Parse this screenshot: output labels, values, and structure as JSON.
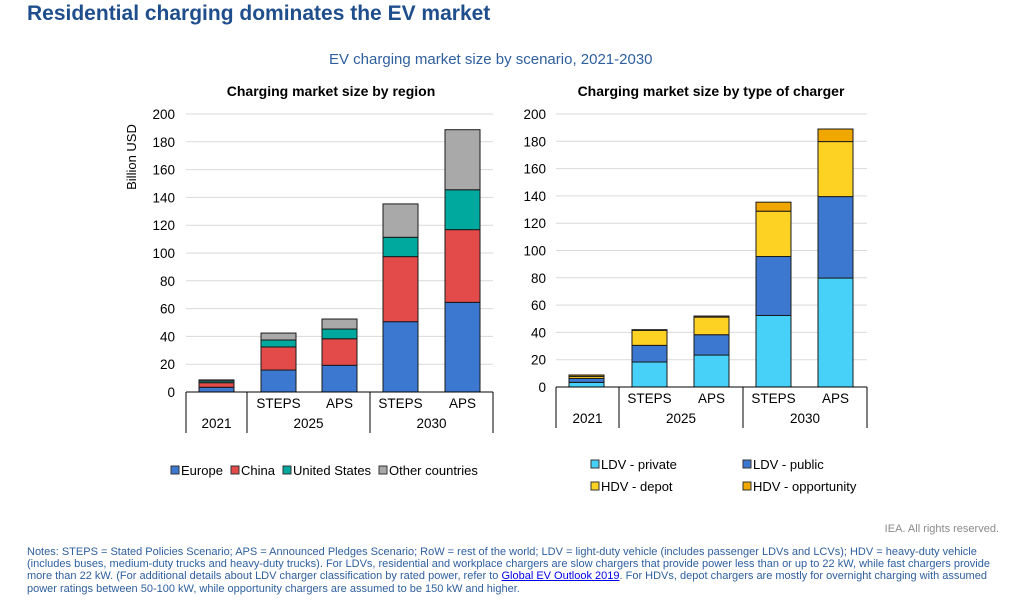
{
  "header": {
    "title": "Residential charging dominates the EV market",
    "subtitle": "EV charging market size by scenario, 2021-2030"
  },
  "chart_data": [
    {
      "type": "bar",
      "stacked": true,
      "title": "Charging market size by region",
      "ylabel": "Billion USD",
      "xlabel": "",
      "ylim": [
        0,
        200
      ],
      "yticks": [
        0,
        20,
        40,
        60,
        80,
        100,
        120,
        140,
        160,
        180,
        200
      ],
      "grid": true,
      "categories": [
        {
          "scenario": "",
          "year": "2021"
        },
        {
          "scenario": "STEPS",
          "year": "2025"
        },
        {
          "scenario": "APS",
          "year": "2025"
        },
        {
          "scenario": "STEPS",
          "year": "2030"
        },
        {
          "scenario": "APS",
          "year": "2030"
        }
      ],
      "year_groups": [
        "2021",
        "2025",
        "2030"
      ],
      "series": [
        {
          "name": "Europe",
          "color": "#3c78d0",
          "values": [
            3.4,
            15.8,
            19.2,
            50.6,
            64.5
          ]
        },
        {
          "name": "China",
          "color": "#e24b4a",
          "values": [
            3.3,
            16.6,
            19.1,
            46.8,
            52.3
          ]
        },
        {
          "name": "United States",
          "color": "#00a99d",
          "values": [
            1.2,
            5.0,
            7.0,
            13.9,
            28.7
          ]
        },
        {
          "name": "Other countries",
          "color": "#a9a9a9",
          "values": [
            0.8,
            5.0,
            7.2,
            24.0,
            43.2
          ]
        }
      ],
      "legend": "bottom"
    },
    {
      "type": "bar",
      "stacked": true,
      "title": "Charging market size by type of charger",
      "ylabel": "",
      "xlabel": "",
      "ylim": [
        0,
        200
      ],
      "yticks": [
        0,
        20,
        40,
        60,
        80,
        100,
        120,
        140,
        160,
        180,
        200
      ],
      "grid": true,
      "categories": [
        {
          "scenario": "",
          "year": "2021"
        },
        {
          "scenario": "STEPS",
          "year": "2025"
        },
        {
          "scenario": "APS",
          "year": "2025"
        },
        {
          "scenario": "STEPS",
          "year": "2030"
        },
        {
          "scenario": "APS",
          "year": "2030"
        }
      ],
      "year_groups": [
        "2021",
        "2025",
        "2030"
      ],
      "series": [
        {
          "name": "LDV - private",
          "color": "#48d1f8",
          "values": [
            3.4,
            18.3,
            23.4,
            52.4,
            79.8
          ]
        },
        {
          "name": "LDV - public",
          "color": "#3c78d0",
          "values": [
            2.9,
            12.2,
            14.9,
            43.2,
            59.7
          ]
        },
        {
          "name": "HDV - depot",
          "color": "#fdd222",
          "values": [
            1.5,
            11.0,
            12.9,
            33.2,
            40.3
          ]
        },
        {
          "name": "HDV - opportunity",
          "color": "#f0a800",
          "values": [
            1.0,
            0.5,
            0.8,
            6.6,
            9.2
          ]
        }
      ],
      "legend": "bottom"
    }
  ],
  "footer": {
    "credit": "IEA. All rights reserved.",
    "notes_before_link": "Notes: STEPS = Stated Policies Scenario; APS = Announced Pledges Scenario; RoW = rest of the world; LDV = light-duty vehicle (includes passenger LDVs and LCVs); HDV = heavy-duty vehicle (includes buses, medium-duty trucks and heavy-duty trucks). For LDVs, residential and workplace chargers are slow chargers that provide power less than or up to 22 kW, while fast chargers provide more than 22 kW. (For additional details about LDV charger classification by rated power, refer to ",
    "link_text": "Global EV Outlook 2019",
    "notes_after_link": ". For HDVs, depot chargers are mostly for overnight charging with assumed power ratings between 50-100 kW, while opportunity chargers are assumed to be 150 kW and higher."
  }
}
